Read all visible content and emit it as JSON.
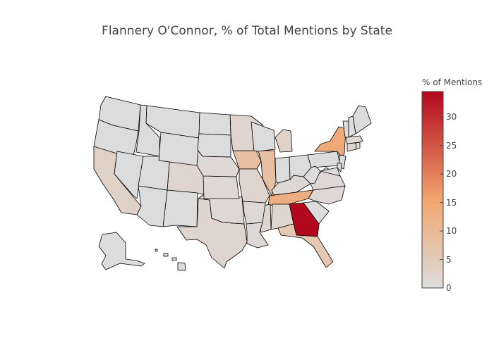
{
  "title": "Flannery O'Connor, % of Total Mentions by State",
  "colorbar": {
    "title": "% of Mentions",
    "min": 0,
    "max": 34.5,
    "ticks": [
      {
        "value": 0,
        "label": "0"
      },
      {
        "value": 5,
        "label": "5"
      },
      {
        "value": 10,
        "label": "10"
      },
      {
        "value": 15,
        "label": "15"
      },
      {
        "value": 20,
        "label": "20"
      },
      {
        "value": 25,
        "label": "25"
      },
      {
        "value": 30,
        "label": "30"
      }
    ],
    "colors": {
      "low": "#dcdcdc",
      "mid": "#f2a56f",
      "high": "#b2071d"
    }
  },
  "map_data": {
    "scope": "USA",
    "border_color": "#000000",
    "states": [
      {
        "code": "GA",
        "name": "Georgia",
        "value": 34.5
      },
      {
        "code": "NY",
        "name": "New York",
        "value": 14
      },
      {
        "code": "TN",
        "name": "Tennessee",
        "value": 13
      },
      {
        "code": "IL",
        "name": "Illinois",
        "value": 8
      },
      {
        "code": "IA",
        "name": "Iowa",
        "value": 8
      },
      {
        "code": "FL",
        "name": "Florida",
        "value": 6
      },
      {
        "code": "MI",
        "name": "Michigan",
        "value": 3
      },
      {
        "code": "CA",
        "name": "California",
        "value": 3
      },
      {
        "code": "TX",
        "name": "Texas",
        "value": 2
      },
      {
        "code": "MO",
        "name": "Missouri",
        "value": 2
      },
      {
        "code": "MN",
        "name": "Minnesota",
        "value": 2
      },
      {
        "code": "CO",
        "name": "Colorado",
        "value": 2
      },
      {
        "code": "AL",
        "name": "Alabama",
        "value": 2
      },
      {
        "code": "MS",
        "name": "Mississippi",
        "value": 2
      },
      {
        "code": "LA",
        "name": "Louisiana",
        "value": 1
      },
      {
        "code": "CT",
        "name": "Connecticut",
        "value": 2
      },
      {
        "code": "MA",
        "name": "Massachusetts",
        "value": 1
      },
      {
        "code": "NC",
        "name": "North Carolina",
        "value": 1
      },
      {
        "code": "VA",
        "name": "Virginia",
        "value": 1
      },
      {
        "code": "KY",
        "name": "Kentucky",
        "value": 1
      },
      {
        "code": "AR",
        "name": "Arkansas",
        "value": 1
      },
      {
        "code": "OK",
        "name": "Oklahoma",
        "value": 1
      },
      {
        "code": "KS",
        "name": "Kansas",
        "value": 1
      },
      {
        "code": "NE",
        "name": "Nebraska",
        "value": 1
      },
      {
        "code": "NM",
        "name": "New Mexico",
        "value": 0
      },
      {
        "code": "AZ",
        "name": "Arizona",
        "value": 0
      },
      {
        "code": "WA",
        "name": "Washington",
        "value": 0
      },
      {
        "code": "OR",
        "name": "Oregon",
        "value": 0
      },
      {
        "code": "ID",
        "name": "Idaho",
        "value": 0
      },
      {
        "code": "MT",
        "name": "Montana",
        "value": 0
      },
      {
        "code": "WY",
        "name": "Wyoming",
        "value": 0
      },
      {
        "code": "NV",
        "name": "Nevada",
        "value": 0
      },
      {
        "code": "UT",
        "name": "Utah",
        "value": 0
      },
      {
        "code": "ND",
        "name": "North Dakota",
        "value": 0
      },
      {
        "code": "SD",
        "name": "South Dakota",
        "value": 0
      },
      {
        "code": "WI",
        "name": "Wisconsin",
        "value": 0
      },
      {
        "code": "IN",
        "name": "Indiana",
        "value": 0
      },
      {
        "code": "OH",
        "name": "Ohio",
        "value": 0
      },
      {
        "code": "PA",
        "name": "Pennsylvania",
        "value": 0
      },
      {
        "code": "WV",
        "name": "West Virginia",
        "value": 0
      },
      {
        "code": "SC",
        "name": "South Carolina",
        "value": 0
      },
      {
        "code": "ME",
        "name": "Maine",
        "value": 0
      },
      {
        "code": "VT",
        "name": "Vermont",
        "value": 0
      },
      {
        "code": "NH",
        "name": "New Hampshire",
        "value": 0
      },
      {
        "code": "RI",
        "name": "Rhode Island",
        "value": 0
      },
      {
        "code": "NJ",
        "name": "New Jersey",
        "value": 0
      },
      {
        "code": "DE",
        "name": "Delaware",
        "value": 0
      },
      {
        "code": "MD",
        "name": "Maryland",
        "value": 0
      },
      {
        "code": "AK",
        "name": "Alaska",
        "value": 0
      },
      {
        "code": "HI",
        "name": "Hawaii",
        "value": 0
      }
    ]
  }
}
